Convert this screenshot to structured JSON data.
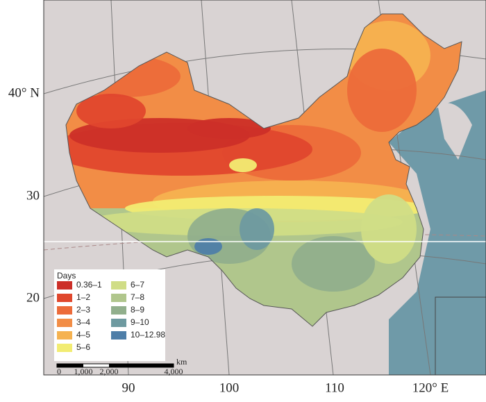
{
  "axes": {
    "latitude_labels": [
      "40° N",
      "30",
      "20"
    ],
    "longitude_labels": [
      "90",
      "100",
      "110",
      "120° E"
    ]
  },
  "legend": {
    "title": "Days",
    "items": [
      {
        "label": "0.36–1",
        "color": "#cc2f28"
      },
      {
        "label": "1–2",
        "color": "#e0472d"
      },
      {
        "label": "2–3",
        "color": "#ec6b3a"
      },
      {
        "label": "3–4",
        "color": "#f28d46"
      },
      {
        "label": "4–5",
        "color": "#f5b250"
      },
      {
        "label": "5–6",
        "color": "#f2ec72"
      },
      {
        "label": "6–7",
        "color": "#d0dd86"
      },
      {
        "label": "7–8",
        "color": "#b0c68c"
      },
      {
        "label": "8–9",
        "color": "#91af8c"
      },
      {
        "label": "9–10",
        "color": "#6e9aa0"
      },
      {
        "label": "10–12.98",
        "color": "#4e7ea8"
      }
    ]
  },
  "scale_bar": {
    "labels": [
      "0",
      "1,000",
      "2,000",
      "4,000"
    ],
    "unit": "km"
  }
}
